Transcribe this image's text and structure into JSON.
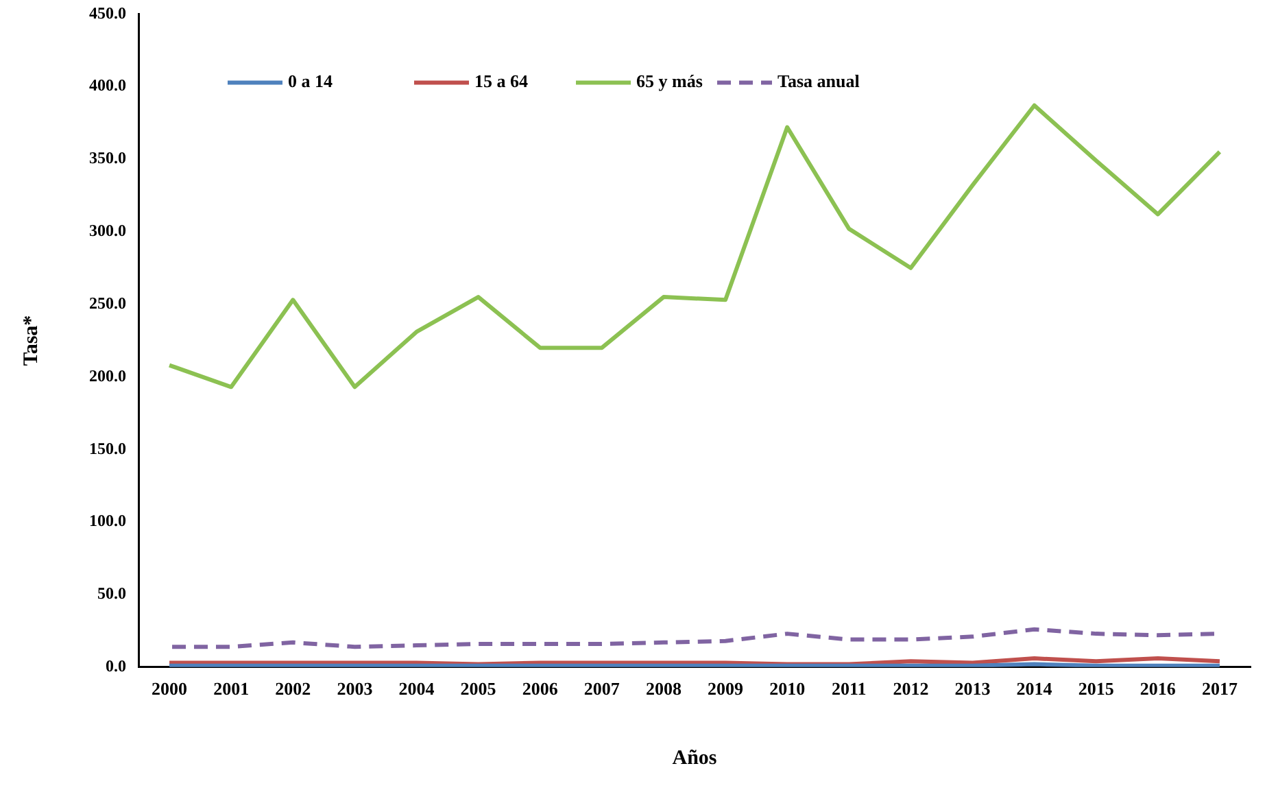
{
  "chart_data": {
    "type": "line",
    "xlabel": "Años",
    "ylabel": "Tasa*",
    "categories": [
      "2000",
      "2001",
      "2002",
      "2003",
      "2004",
      "2005",
      "2006",
      "2007",
      "2008",
      "2009",
      "2010",
      "2011",
      "2012",
      "2013",
      "2014",
      "2015",
      "2016",
      "2017"
    ],
    "series": [
      {
        "name": "0 a 14",
        "color": "#4f81bd",
        "values": [
          1,
          1,
          1,
          1,
          1,
          1,
          1,
          1,
          1,
          1,
          1,
          1,
          1,
          1,
          2,
          1,
          1,
          1
        ]
      },
      {
        "name": "15 a 64",
        "color": "#c0504d",
        "values": [
          3,
          3,
          3,
          3,
          3,
          2,
          3,
          3,
          3,
          3,
          2,
          2,
          4,
          3,
          6,
          4,
          6,
          4
        ]
      },
      {
        "name": "65 y más",
        "color": "#8cc152",
        "values": [
          208,
          193,
          253,
          193,
          231,
          255,
          220,
          220,
          255,
          253,
          372,
          302,
          275,
          332,
          387,
          349,
          312,
          355
        ]
      },
      {
        "name": "Tasa anual",
        "color": "#8064a2",
        "line_style": "dashed",
        "values": [
          14,
          14,
          17,
          14,
          15,
          16,
          16,
          16,
          17,
          18,
          23,
          19,
          19,
          21,
          26,
          23,
          22,
          23
        ]
      }
    ],
    "ylim": [
      0,
      450
    ],
    "yticks": [
      {
        "value": 0,
        "label": "0.0"
      },
      {
        "value": 50,
        "label": "50.0"
      },
      {
        "value": 100,
        "label": "100.0"
      },
      {
        "value": 150,
        "label": "150.0"
      },
      {
        "value": 200,
        "label": "200.0"
      },
      {
        "value": 250,
        "label": "250.0"
      },
      {
        "value": 300,
        "label": "300.0"
      },
      {
        "value": 350,
        "label": "350.0"
      },
      {
        "value": 400,
        "label": "400.0"
      },
      {
        "value": 450,
        "label": "450.0"
      }
    ],
    "grid": false,
    "legend": "top left",
    "marker": "none",
    "line_style": "solid"
  }
}
